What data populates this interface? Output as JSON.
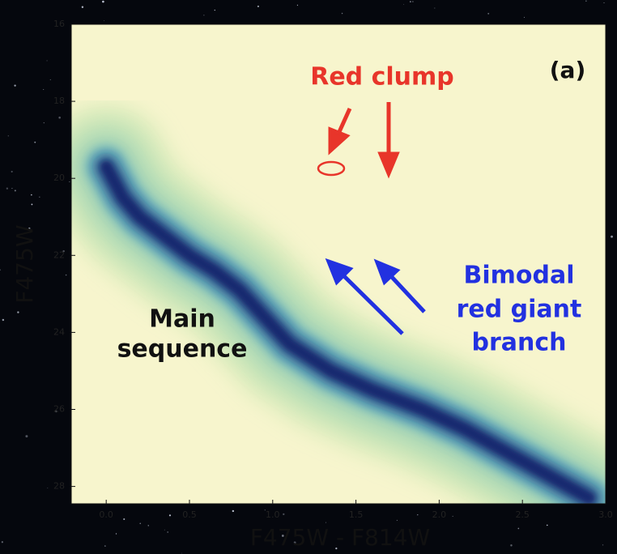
{
  "chart_data": {
    "type": "density",
    "x_label": "F475W - F814W",
    "y_label": "F475W",
    "x": [
      0.0,
      0.1,
      0.2,
      0.35,
      0.5,
      0.65,
      0.8,
      0.95,
      1.1,
      1.35,
      1.6,
      1.9,
      2.15,
      2.4,
      2.65,
      2.9
    ],
    "values": [
      19.7,
      20.5,
      21.0,
      21.5,
      22.0,
      22.4,
      22.9,
      23.6,
      24.3,
      25.0,
      25.5,
      26.0,
      26.5,
      27.1,
      27.7,
      28.3
    ],
    "color": "#16286e",
    "xlim": [
      -0.21,
      3.0
    ],
    "ylim": [
      28.45,
      16
    ],
    "xticks": [
      {
        "value": 0,
        "label": "0.0"
      },
      0.5,
      {
        "value": 1,
        "label": "1.0"
      },
      1.5,
      {
        "value": 2,
        "label": "2.0"
      },
      2.5,
      {
        "value": 3,
        "label": "3.0"
      }
    ],
    "yticks": [
      16,
      18,
      20,
      22,
      24,
      26,
      28
    ],
    "annotations": [
      [
        "Red clump"
      ],
      [
        "(a)"
      ],
      [
        "Bimodal",
        "red giant",
        "branch"
      ],
      [
        "Main",
        "sequence"
      ]
    ]
  }
}
